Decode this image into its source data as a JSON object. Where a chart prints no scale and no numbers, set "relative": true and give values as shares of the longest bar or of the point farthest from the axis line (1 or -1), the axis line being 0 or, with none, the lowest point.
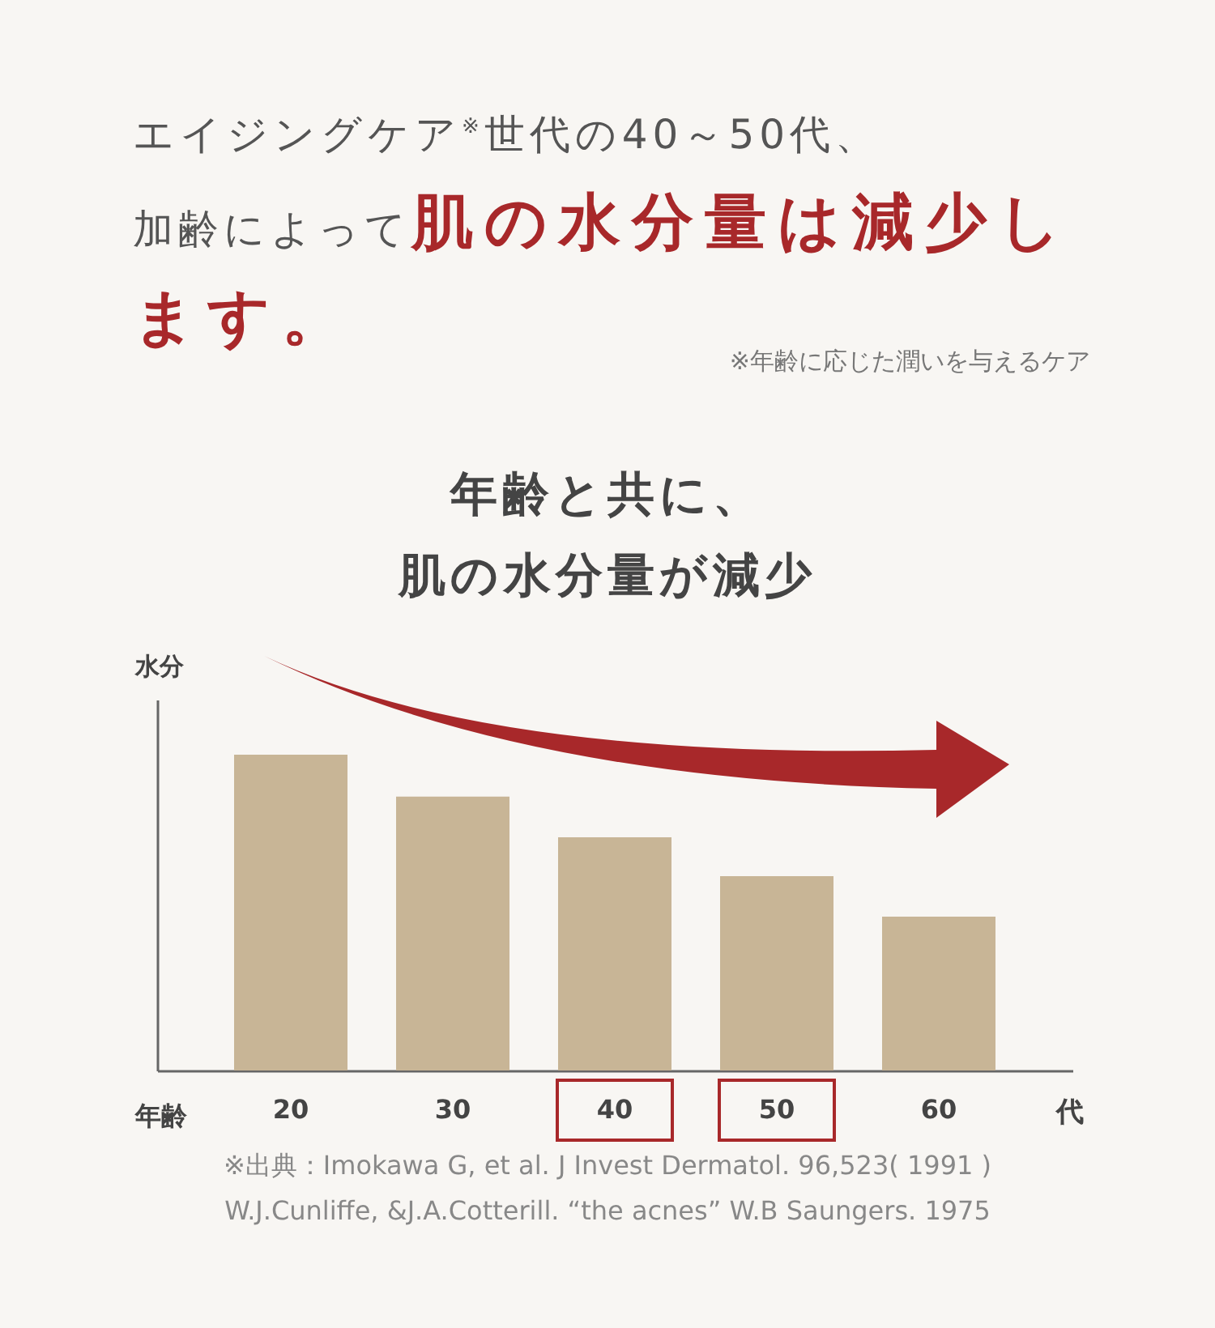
{
  "chart_data": {
    "type": "bar",
    "title": "エイジングケア$^{※}$世代の40～50代、",
    "subtitle": "肌の水分量は減少します。",
    "xlabel": "年齢",
    "ylabel": "水分",
    "categories": [
      "20",
      "30",
      "40",
      "50",
      "60"
    ],
    "values": [
      1,
      0.867,
      0.738,
      0.615,
      0.487
    ],
    "color": "#c8b596",
    "relative": true,
    "annotations": [
      "加齢によって",
      "※年齢に応じた潤いを与えるケア",
      "年齢と共に、",
      "肌の水分量が減少",
      "※出典：Imokawa G, et al. J Invest Dermatol. 96,523( 1991 )",
      "W.J.Cunliffe, &J.A.Cotterill. “the acnes” W.B Saungers. 1975",
      "代"
    ]
  }
}
